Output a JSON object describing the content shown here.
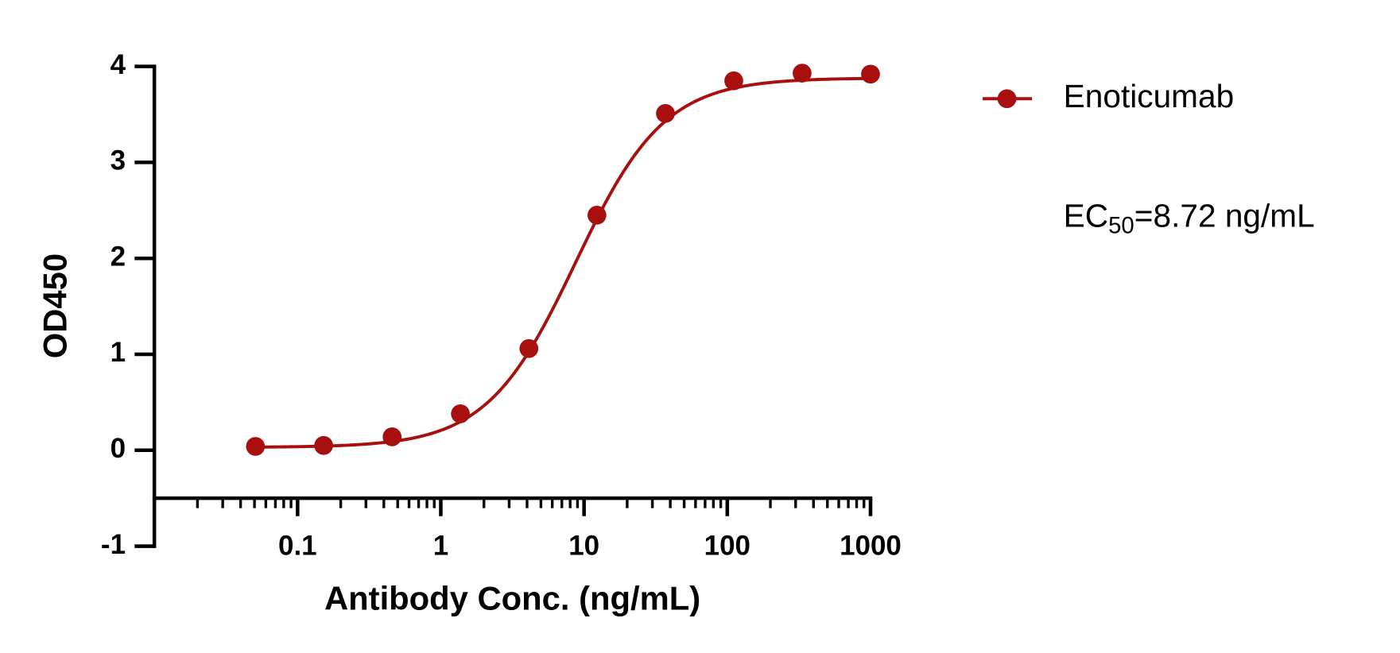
{
  "chart_data": {
    "type": "scatter",
    "x_label": "Antibody Conc. (ng/mL)",
    "y_label": "OD450",
    "xscale": "log",
    "xlim": [
      0.01,
      1000
    ],
    "xticks": [
      0.1,
      1,
      10,
      100,
      1000
    ],
    "x_minor_ticks": true,
    "ylim": [
      -1,
      4
    ],
    "yticks": [
      -1,
      0,
      1,
      2,
      3,
      4
    ],
    "x_axis_at": -0.5,
    "legend": "top-right",
    "series": [
      {
        "name": "Enoticumab",
        "color": "#a80f0f",
        "x": [
          0.0508,
          0.152,
          0.457,
          1.37,
          4.12,
          12.3,
          37,
          111,
          333,
          1000
        ],
        "values": [
          0.04,
          0.05,
          0.14,
          0.38,
          1.06,
          2.45,
          3.51,
          3.85,
          3.93,
          3.92
        ]
      }
    ],
    "fit": {
      "model": "4PL",
      "bottom": 0.03,
      "top": 3.88,
      "ec50": 8.72,
      "hill": 1.4
    },
    "annotation": {
      "text": "EC",
      "subscript": "50",
      "rest": "=8.72 ng/mL"
    }
  }
}
